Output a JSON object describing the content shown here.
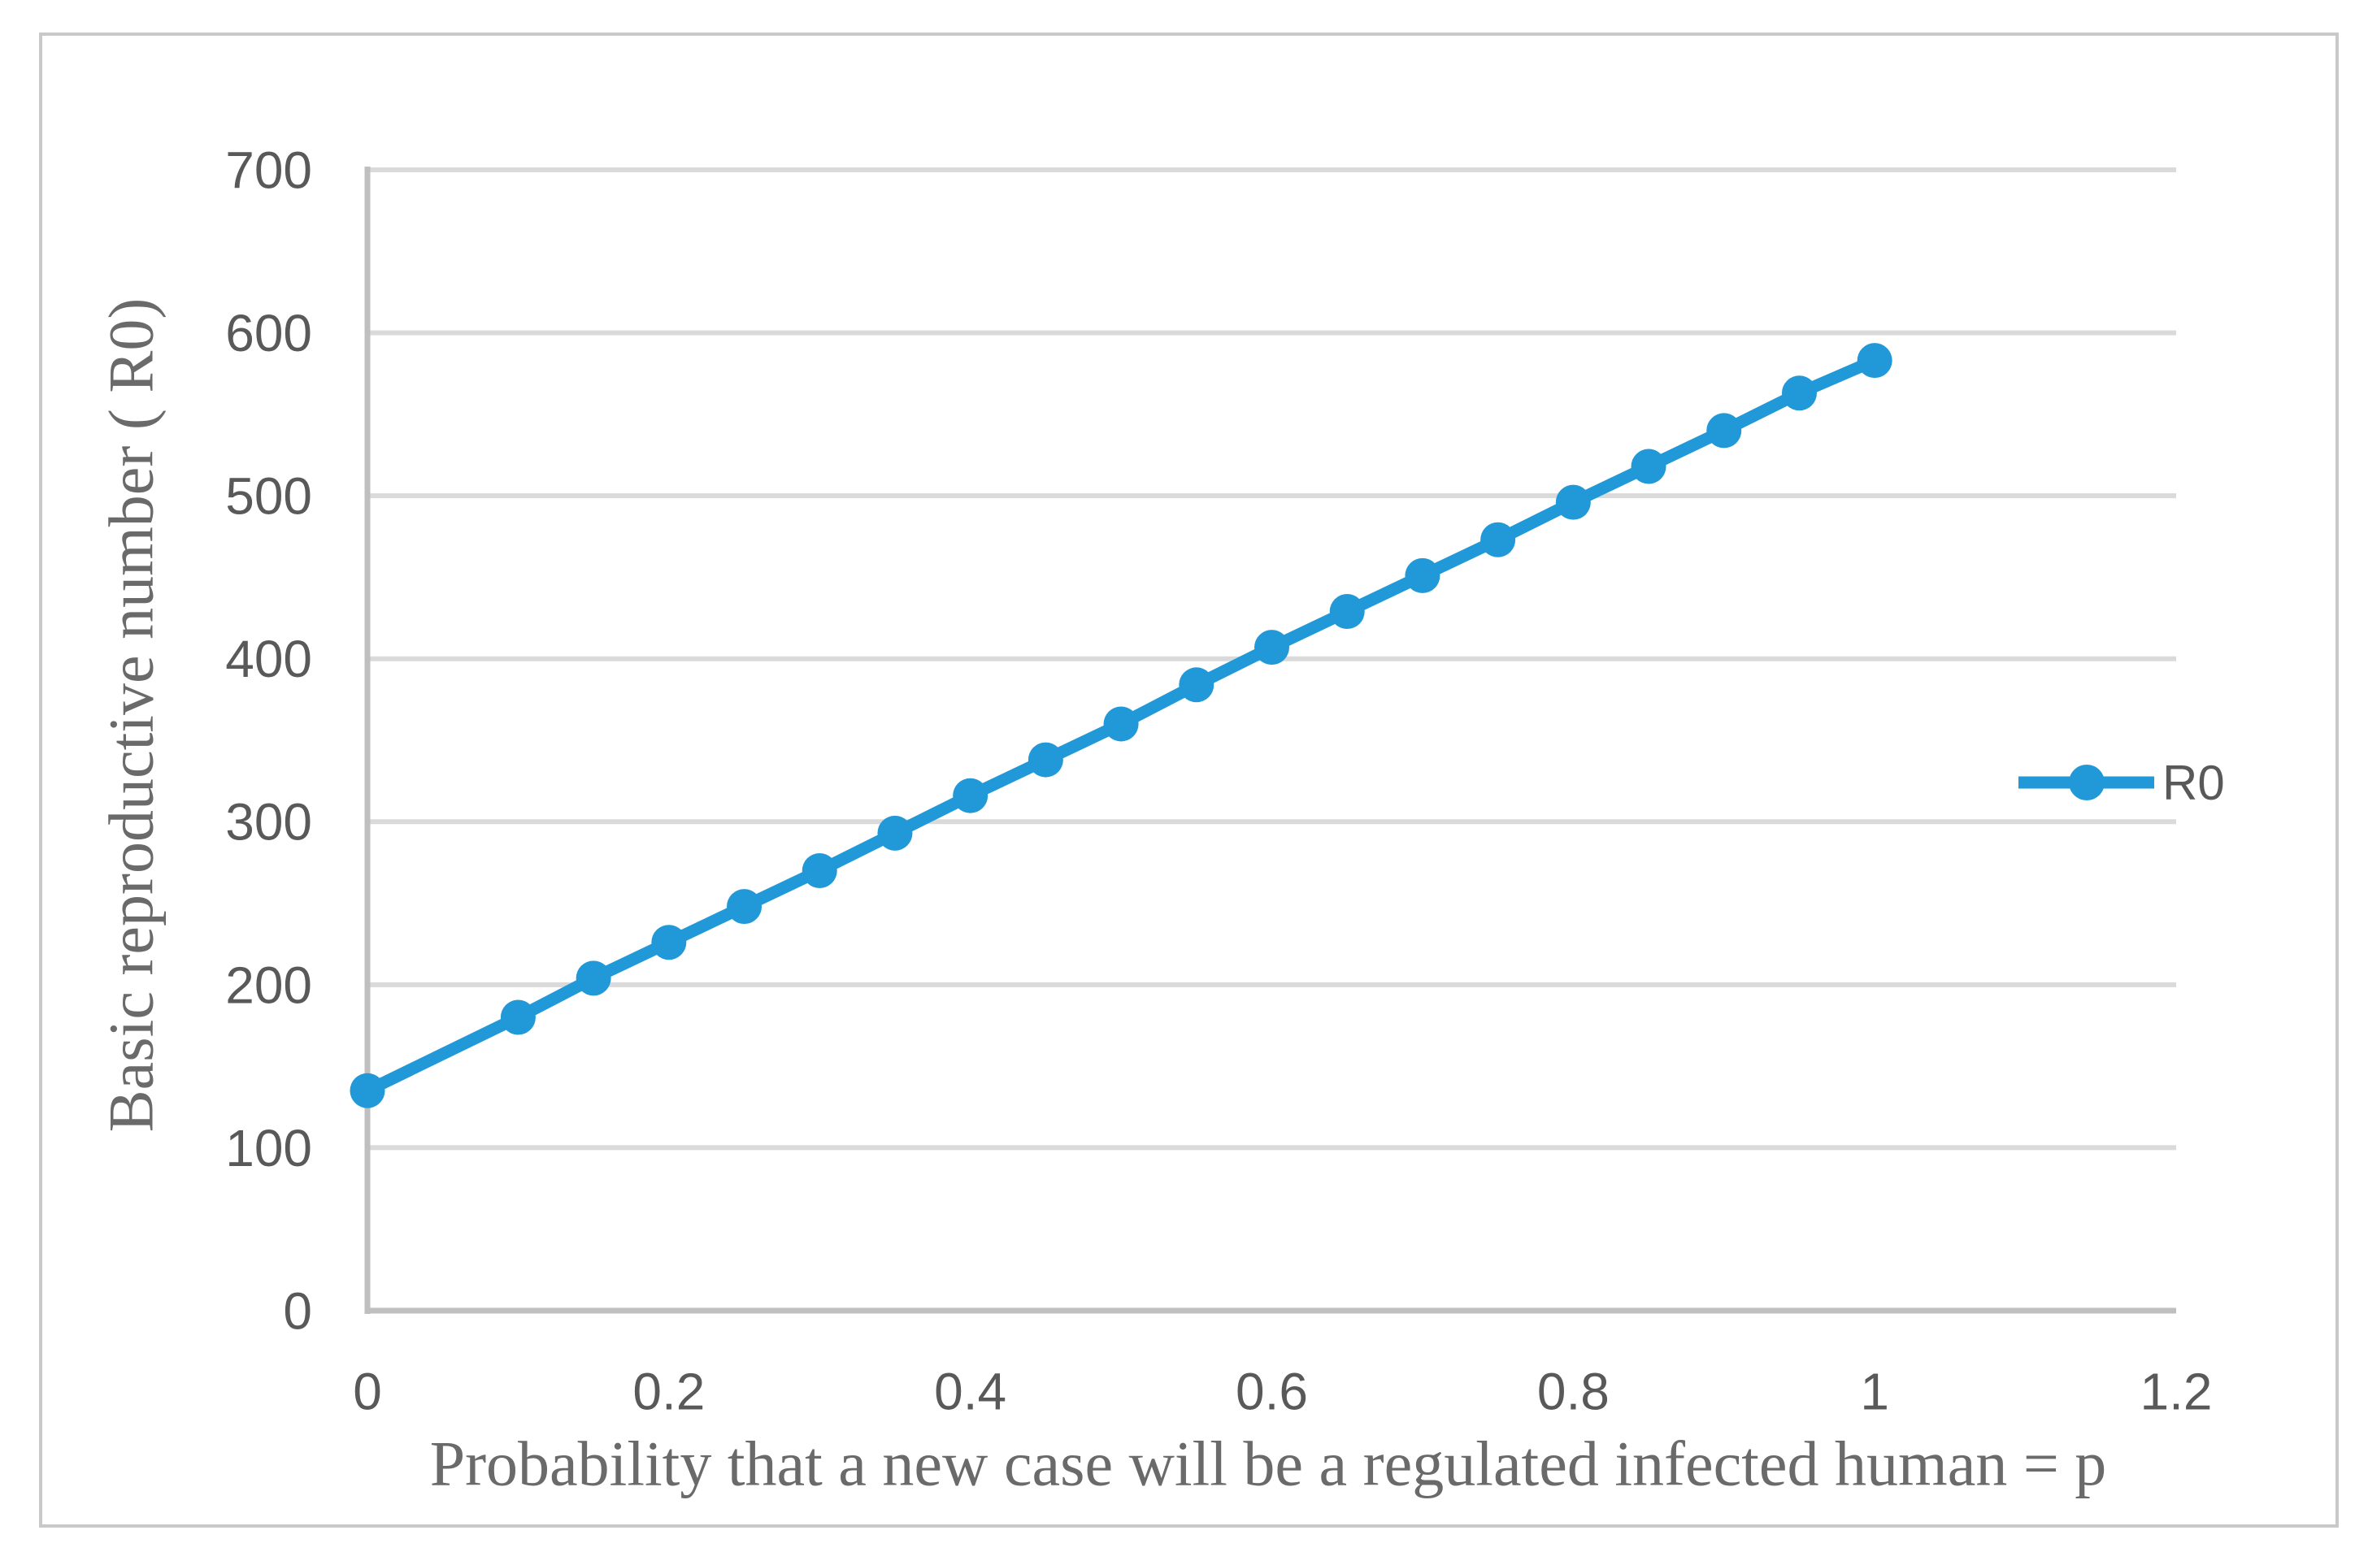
{
  "chart_data": {
    "type": "line",
    "title": "",
    "xlabel": "Probability that a new case will be a regulated infected human = p",
    "ylabel": "Basic reproductive number ( R0)",
    "series": [
      {
        "name": "R0",
        "x": [
          0,
          0.1,
          0.15,
          0.2,
          0.25,
          0.3,
          0.35,
          0.4,
          0.45,
          0.5,
          0.55,
          0.6,
          0.65,
          0.7,
          0.75,
          0.8,
          0.85,
          0.9,
          0.95,
          1.0
        ],
        "y": [
          135,
          180,
          204,
          226,
          248,
          270,
          293,
          316,
          338,
          360,
          384,
          407,
          429,
          451,
          473,
          496,
          518,
          540,
          563,
          583
        ]
      }
    ],
    "xlim": [
      0,
      1.2
    ],
    "ylim": [
      0,
      700
    ],
    "xticks": [
      "0",
      "0.2",
      "0.4",
      "0.6",
      "0.8",
      "1",
      "1.2"
    ],
    "xtick_values": [
      0,
      0.2,
      0.4,
      0.6,
      0.8,
      1,
      1.2
    ],
    "yticks": [
      "0",
      "100",
      "200",
      "300",
      "400",
      "500",
      "600",
      "700"
    ],
    "ytick_values": [
      0,
      100,
      200,
      300,
      400,
      500,
      600,
      700
    ],
    "grid": "horizontal",
    "legend_position": "right-middle",
    "marker": "circle",
    "colors": {
      "series_line": "#2199D8",
      "gridline": "#DADADA",
      "axis_line": "#BFBFBF",
      "tick_text": "#595959",
      "title_text": "#6a6a6a",
      "legend_text": "#595959",
      "figure_border": "#C9C9C9",
      "background": "#FFFFFF"
    }
  }
}
